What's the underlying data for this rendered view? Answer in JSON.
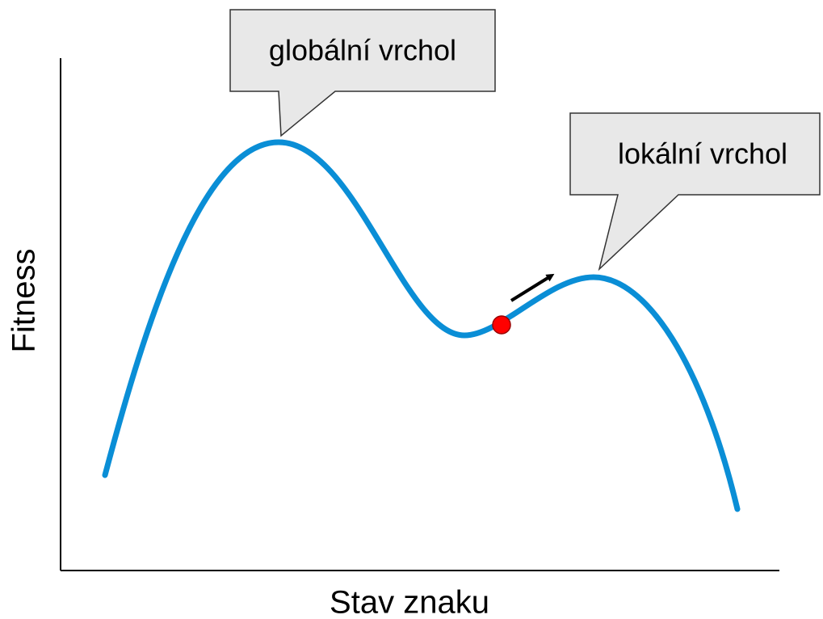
{
  "axes": {
    "x_label": "Stav znaku",
    "y_label": "Fitness"
  },
  "callouts": [
    {
      "label": "globální vrchol"
    },
    {
      "label": "lokální vrchol"
    }
  ]
}
